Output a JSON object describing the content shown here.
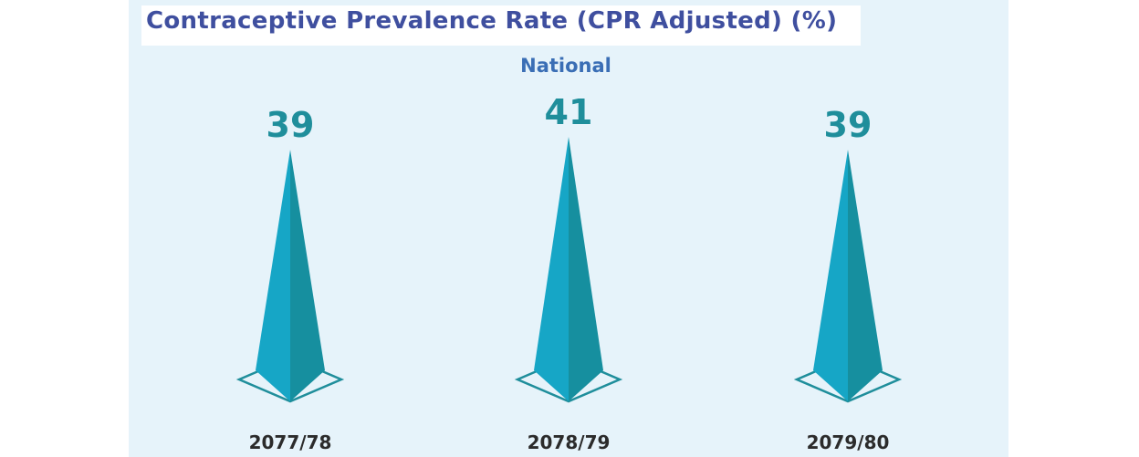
{
  "chart_data": {
    "type": "bar",
    "title": "Contraceptive Prevalence Rate (CPR Adjusted) (%)",
    "subtitle": "National",
    "categories": [
      "2077/78",
      "2078/79",
      "2079/80"
    ],
    "values": [
      39,
      41,
      39
    ],
    "ylim": [
      0,
      41
    ],
    "grid": false,
    "colors": {
      "pyramid_left": "#16a6c6",
      "pyramid_right": "#168f9f",
      "base_outline": "#1f8e9b",
      "value_label": "#1f8e9b",
      "title": "#3f4f9f",
      "subtitle": "#3a6eb5",
      "panel_background": "#e6f3fa"
    }
  }
}
